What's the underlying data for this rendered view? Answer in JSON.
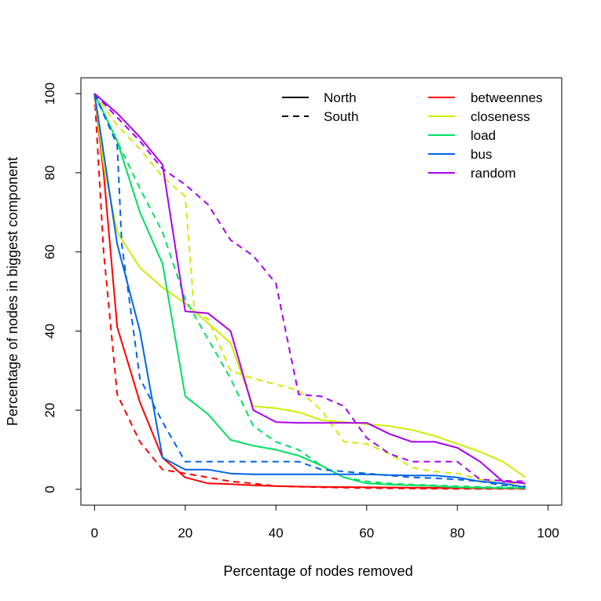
{
  "chart_data": {
    "type": "line",
    "xlabel": "Percentage of nodes removed",
    "ylabel": "Percentage of nodes in biggest component",
    "xlim": [
      -3,
      103
    ],
    "ylim": [
      -4,
      104
    ],
    "xticks": [
      "0",
      "20",
      "40",
      "60",
      "80",
      "100"
    ],
    "yticks": [
      "0",
      "20",
      "40",
      "60",
      "80",
      "100"
    ],
    "grid": false,
    "legend_regions": {
      "position": "top-left-inner",
      "entries": [
        {
          "label": "North",
          "dash": "solid"
        },
        {
          "label": "South",
          "dash": "dashed"
        }
      ]
    },
    "legend_measures": {
      "position": "top-right",
      "entries": [
        {
          "label": "betweennes",
          "color": "#ff0000"
        },
        {
          "label": "closeness",
          "color": "#ccee00"
        },
        {
          "label": "load",
          "color": "#00e060"
        },
        {
          "label": "bus",
          "color": "#0064e6"
        },
        {
          "label": "random",
          "color": "#aa00ee"
        }
      ]
    },
    "series": [
      {
        "measure": "betweennes",
        "region": "North",
        "color": "#ff0000",
        "dash": "solid",
        "x": [
          0,
          2,
          5,
          10,
          15,
          20,
          25,
          30,
          35,
          40,
          50,
          60,
          70,
          80,
          90,
          95
        ],
        "y": [
          100,
          80,
          41,
          22,
          8,
          3,
          1.5,
          1.3,
          1,
          0.8,
          0.6,
          0.5,
          0.4,
          0.3,
          0.2,
          0.2
        ]
      },
      {
        "measure": "betweennes",
        "region": "South",
        "color": "#ff0000",
        "dash": "dashed",
        "x": [
          0,
          2,
          5,
          10,
          15,
          20,
          25,
          30,
          35,
          40,
          50,
          60,
          70,
          80,
          90,
          95
        ],
        "y": [
          100,
          60,
          24,
          12,
          5,
          4,
          3,
          2,
          1.5,
          0.8,
          0.5,
          0.3,
          0.2,
          0.1,
          0.1,
          0.1
        ]
      },
      {
        "measure": "closeness",
        "region": "North",
        "color": "#ccee00",
        "dash": "solid",
        "x": [
          0,
          2,
          5,
          10,
          15,
          20,
          25,
          30,
          35,
          40,
          45,
          50,
          55,
          60,
          65,
          70,
          75,
          80,
          85,
          90,
          95
        ],
        "y": [
          100,
          82,
          65,
          56,
          51,
          47,
          42,
          37,
          21,
          20.5,
          19.5,
          17.5,
          17,
          16.5,
          16,
          15,
          13.5,
          11.5,
          9.5,
          7,
          3
        ]
      },
      {
        "measure": "closeness",
        "region": "South",
        "color": "#ccee00",
        "dash": "dashed",
        "x": [
          0,
          5,
          10,
          15,
          20,
          22,
          25,
          30,
          35,
          40,
          45,
          50,
          55,
          60,
          65,
          70,
          75,
          80,
          85,
          90,
          95
        ],
        "y": [
          100,
          92,
          86,
          79,
          74,
          45,
          43,
          30,
          28,
          26.5,
          25,
          20,
          12,
          11.5,
          9,
          5.5,
          4.5,
          4,
          2.5,
          1.5,
          1.5
        ]
      },
      {
        "measure": "load",
        "region": "North",
        "color": "#00e060",
        "dash": "solid",
        "x": [
          0,
          5,
          10,
          15,
          20,
          25,
          30,
          35,
          40,
          45,
          50,
          55,
          60,
          65,
          70,
          75,
          80,
          85,
          90,
          95
        ],
        "y": [
          100,
          88,
          70,
          57,
          23.5,
          19,
          12.5,
          11,
          10,
          8.5,
          6,
          3,
          1.5,
          1.2,
          1,
          0.8,
          0.5,
          0.4,
          0.3,
          0.3
        ]
      },
      {
        "measure": "load",
        "region": "South",
        "color": "#00e060",
        "dash": "dashed",
        "x": [
          0,
          5,
          10,
          15,
          20,
          25,
          30,
          35,
          40,
          45,
          50,
          55,
          60,
          65,
          70,
          75,
          80,
          85,
          90,
          95
        ],
        "y": [
          100,
          88,
          76,
          65,
          48,
          38,
          28,
          16,
          12,
          10,
          6,
          3,
          2,
          1.5,
          1.2,
          1,
          0.8,
          0.6,
          0.5,
          0.4
        ]
      },
      {
        "measure": "bus",
        "region": "North",
        "color": "#0064e6",
        "dash": "solid",
        "x": [
          0,
          2,
          5,
          10,
          15,
          20,
          25,
          30,
          35,
          40,
          45,
          50,
          55,
          60,
          65,
          70,
          75,
          80,
          85,
          90,
          95
        ],
        "y": [
          100,
          85,
          62,
          40,
          8,
          5,
          5,
          4,
          3.8,
          3.8,
          3.8,
          3.8,
          3.8,
          3.8,
          3.6,
          3.5,
          3.5,
          3,
          2,
          1.5,
          0.5
        ]
      },
      {
        "measure": "bus",
        "region": "South",
        "color": "#0064e6",
        "dash": "dashed",
        "x": [
          0,
          5,
          6,
          10,
          15,
          20,
          25,
          30,
          35,
          40,
          45,
          50,
          55,
          60,
          65,
          70,
          75,
          80,
          85,
          90,
          95
        ],
        "y": [
          100,
          87,
          62,
          28,
          17,
          7,
          7,
          7,
          7,
          7,
          7,
          5,
          4.5,
          4,
          3.5,
          3,
          2.8,
          2.5,
          2,
          1,
          0.8
        ]
      },
      {
        "measure": "random",
        "region": "North",
        "color": "#aa00ee",
        "dash": "solid",
        "x": [
          0,
          5,
          10,
          15,
          20,
          25,
          30,
          35,
          40,
          45,
          50,
          55,
          60,
          65,
          70,
          75,
          80,
          85,
          88,
          90,
          95
        ],
        "y": [
          100,
          95,
          89,
          82,
          45,
          44.5,
          40,
          20,
          17,
          16.8,
          16.8,
          16.8,
          16.8,
          14,
          12,
          12,
          10.5,
          7,
          4,
          2,
          1.5
        ]
      },
      {
        "measure": "random",
        "region": "South",
        "color": "#aa00ee",
        "dash": "dashed",
        "x": [
          0,
          5,
          10,
          15,
          20,
          25,
          30,
          35,
          40,
          45,
          50,
          55,
          60,
          65,
          70,
          75,
          80,
          85,
          90,
          95
        ],
        "y": [
          100,
          94,
          88,
          81,
          77,
          72,
          63,
          59,
          52,
          24,
          23.5,
          21,
          13,
          9,
          7,
          7,
          7,
          2.5,
          2.2,
          2
        ]
      }
    ]
  }
}
